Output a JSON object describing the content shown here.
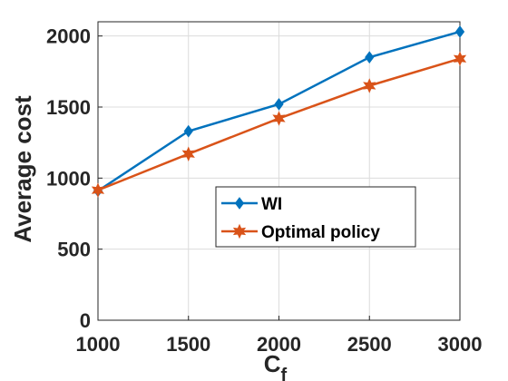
{
  "chart_data": {
    "type": "line",
    "xlabel": "C",
    "xlabel_subscript": "f",
    "ylabel": "Average cost",
    "x": [
      1000,
      1500,
      2000,
      2500,
      3000
    ],
    "xlim": [
      1000,
      3000
    ],
    "ylim": [
      0,
      2100
    ],
    "xticks": [
      1000,
      1500,
      2000,
      2500,
      3000
    ],
    "yticks": [
      0,
      500,
      1000,
      1500,
      2000
    ],
    "grid": true,
    "legend_position": "center-right",
    "series": [
      {
        "name": "WI",
        "values": [
          910,
          1330,
          1520,
          1850,
          2030
        ],
        "color": "#0072BD",
        "marker": "diamond"
      },
      {
        "name": "Optimal policy",
        "values": [
          915,
          1170,
          1420,
          1650,
          1840
        ],
        "color": "#D95319",
        "marker": "hexagram"
      }
    ]
  }
}
